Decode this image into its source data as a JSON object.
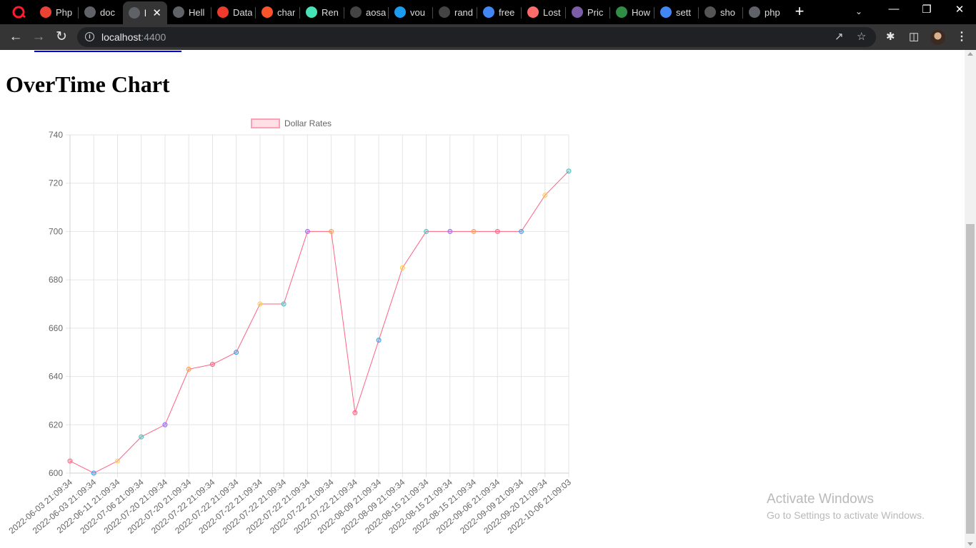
{
  "browser": {
    "tabs": [
      {
        "title": "Php",
        "icon": "gmail-icon",
        "color": "#ea4335"
      },
      {
        "title": "doc",
        "icon": "globe-icon",
        "color": "#5f6368"
      },
      {
        "title": "l",
        "icon": "globe-icon",
        "color": "#5f6368",
        "active": true
      },
      {
        "title": "Hell",
        "icon": "globe-icon",
        "color": "#5f6368"
      },
      {
        "title": "Data",
        "icon": "laravel-icon",
        "color": "#ef3b2d"
      },
      {
        "title": "char",
        "icon": "brave-shield-icon",
        "color": "#fb542b"
      },
      {
        "title": "Ren",
        "icon": "render-icon",
        "color": "#46e3b7"
      },
      {
        "title": "aosa",
        "icon": "github-icon",
        "color": "#444444"
      },
      {
        "title": "vou",
        "icon": "twitter-icon",
        "color": "#1d9bf0"
      },
      {
        "title": "rand",
        "icon": "github-icon",
        "color": "#444444"
      },
      {
        "title": "free",
        "icon": "google-icon",
        "color": "#4285f4"
      },
      {
        "title": "Lost",
        "icon": "rocket-icon",
        "color": "#ff6b6b"
      },
      {
        "title": "Pric",
        "icon": "heroku-icon",
        "color": "#7b5ea7"
      },
      {
        "title": "How",
        "icon": "geeks-icon",
        "color": "#2f8d46"
      },
      {
        "title": "sett",
        "icon": "google-icon",
        "color": "#4285f4"
      },
      {
        "title": "sho",
        "icon": "link-icon",
        "color": "#555555"
      },
      {
        "title": "php",
        "icon": "globe-icon",
        "color": "#5f6368"
      }
    ],
    "address": {
      "host": "localhost",
      "port": ":4400"
    }
  },
  "page": {
    "title": "OverTime Chart"
  },
  "watermark": {
    "line1": "Activate Windows",
    "line2": "Go to Settings to activate Windows."
  },
  "chart_data": {
    "type": "line",
    "title": "",
    "xlabel": "",
    "ylabel": "",
    "legend": {
      "position": "top",
      "label": "Dollar Rates"
    },
    "grid": true,
    "ylim": [
      600,
      740
    ],
    "yticks": [
      600,
      620,
      640,
      660,
      680,
      700,
      720,
      740
    ],
    "line_color": "#ff6384",
    "legend_fill": "#ffe0e6",
    "point_colors": [
      "#ff6384",
      "#36a2eb",
      "#ffcd56",
      "#4bc0c0",
      "#9966ff",
      "#ff9f40"
    ],
    "categories": [
      "2022-06-03 21:09:34",
      "2022-06-03 21:09:34",
      "2022-06-11 21:09:34",
      "2022-07-06 21:09:34",
      "2022-07-20 21:09:34",
      "2022-07-20 21:09:34",
      "2022-07-22 21:09:34",
      "2022-07-22 21:09:34",
      "2022-07-22 21:09:34",
      "2022-07-22 21:09:34",
      "2022-07-22 21:09:34",
      "2022-07-22 21:09:34",
      "2022-07-22 21:09:34",
      "2022-08-09 21:09:34",
      "2022-08-09 21:09:34",
      "2022-08-15 21:09:34",
      "2022-08-15 21:09:34",
      "2022-08-15 21:09:34",
      "2022-09-06 21:09:34",
      "2022-09-09 21:09:34",
      "2022-09-20 21:09:34",
      "2022-10-06 21:09:03"
    ],
    "series": [
      {
        "name": "Dollar Rates",
        "values": [
          605,
          600,
          605,
          615,
          620,
          643,
          645,
          650,
          670,
          670,
          700,
          700,
          625,
          655,
          685,
          700,
          700,
          700,
          700,
          700,
          715,
          725
        ]
      }
    ]
  }
}
